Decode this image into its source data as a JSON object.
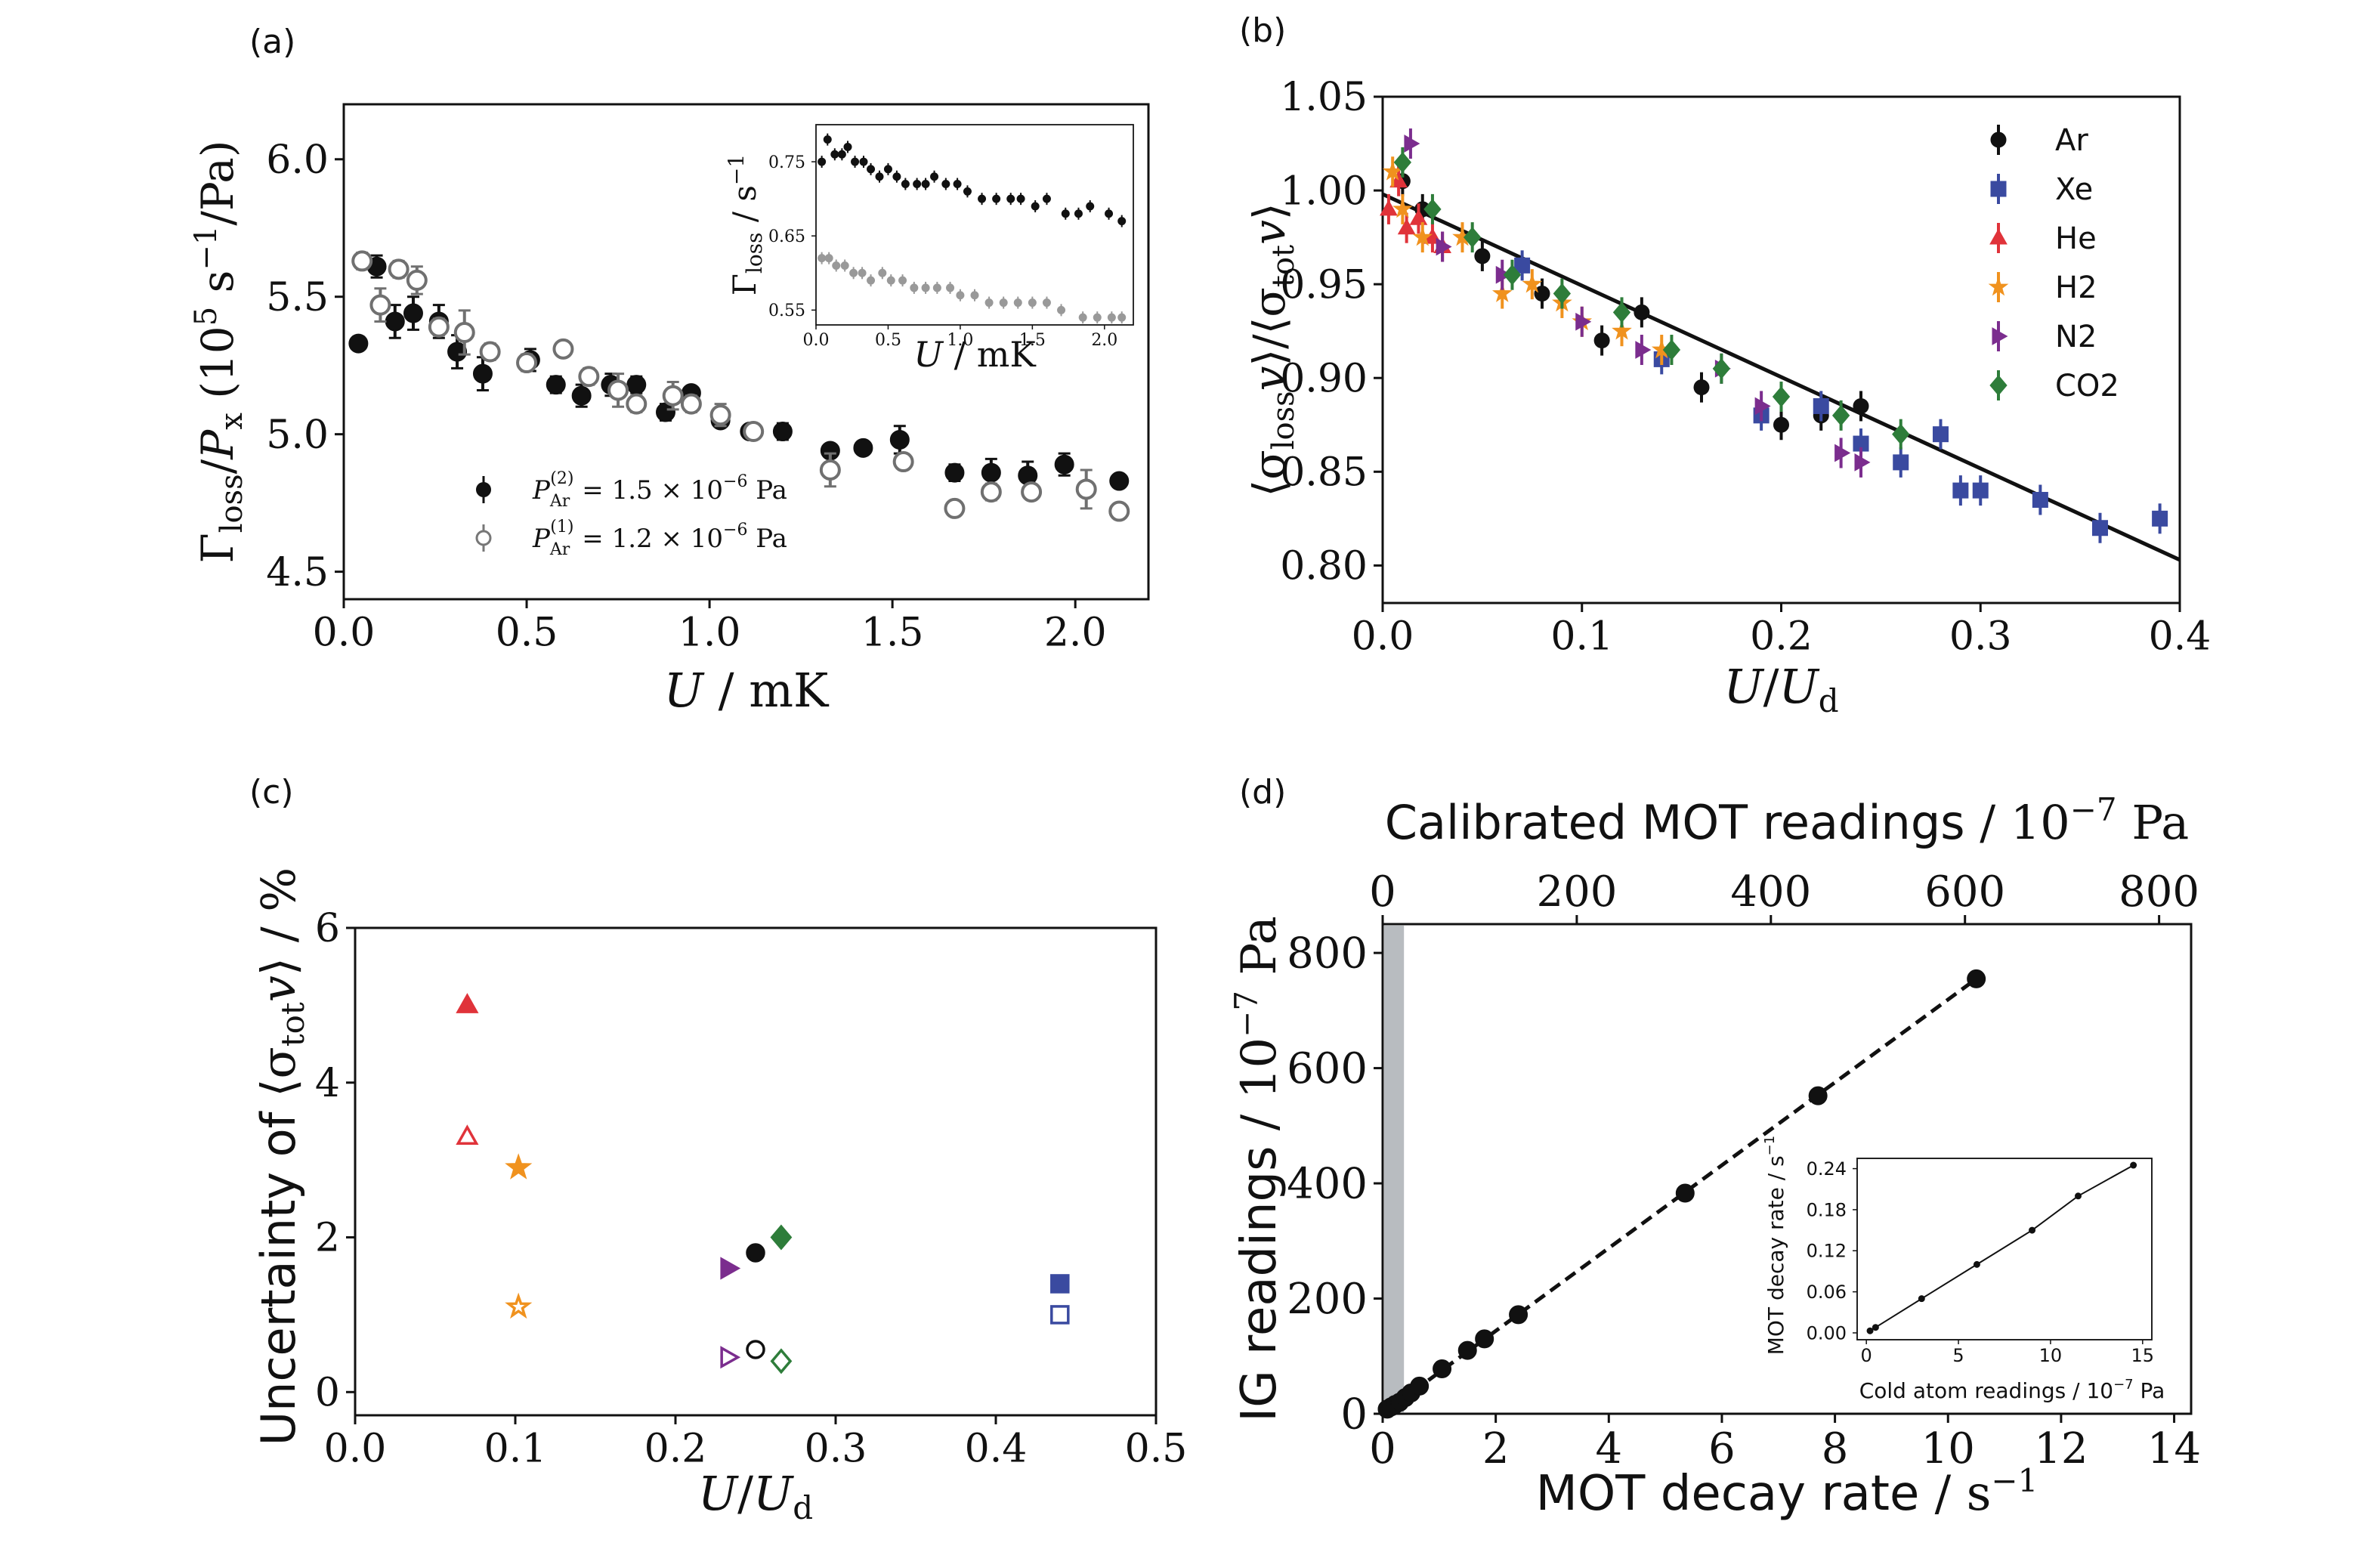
{
  "chart_data": [
    {
      "panel": "(a)",
      "type": "scatter",
      "xlabel": "U / mK",
      "ylabel": "Γloss/Px (10^5 s^-1/Pa)",
      "xlim": [
        0,
        2.2
      ],
      "ylim": [
        4.4,
        6.2
      ],
      "xticks": [
        "0.0",
        "0.5",
        "1.0",
        "1.5",
        "2.0"
      ],
      "yticks": [
        "4.5",
        "5.0",
        "5.5",
        "6.0"
      ],
      "legend_position": "bottom-left",
      "series": [
        {
          "name": "P_Ar^(2) = 1.5 × 10^-6 Pa",
          "marker": "filled-circle",
          "color": "#111111",
          "x": [
            0.04,
            0.09,
            0.14,
            0.19,
            0.26,
            0.31,
            0.38,
            0.51,
            0.58,
            0.65,
            0.73,
            0.8,
            0.88,
            0.95,
            1.03,
            1.11,
            1.2,
            1.33,
            1.42,
            1.52,
            1.67,
            1.77,
            1.87,
            1.97,
            2.12
          ],
          "y": [
            5.33,
            5.61,
            5.41,
            5.44,
            5.41,
            5.3,
            5.22,
            5.27,
            5.18,
            5.14,
            5.18,
            5.18,
            5.08,
            5.15,
            5.05,
            5.01,
            5.01,
            4.94,
            4.95,
            4.98,
            4.86,
            4.86,
            4.85,
            4.89,
            4.83
          ],
          "err": [
            0.02,
            0.04,
            0.06,
            0.06,
            0.06,
            0.06,
            0.06,
            0.04,
            0.03,
            0.04,
            0.04,
            0.03,
            0.03,
            0.02,
            0.02,
            0.02,
            0.03,
            0.02,
            0.02,
            0.05,
            0.03,
            0.05,
            0.05,
            0.04,
            0.02
          ]
        },
        {
          "name": "P_Ar^(1) = 1.2 × 10^-6 Pa",
          "marker": "open-circle",
          "color": "#707070",
          "x": [
            0.05,
            0.1,
            0.15,
            0.2,
            0.26,
            0.33,
            0.4,
            0.5,
            0.6,
            0.67,
            0.75,
            0.8,
            0.9,
            0.95,
            1.03,
            1.12,
            1.33,
            1.53,
            1.67,
            1.77,
            1.88,
            2.03,
            2.12
          ],
          "y": [
            5.63,
            5.47,
            5.6,
            5.56,
            5.39,
            5.37,
            5.3,
            5.26,
            5.31,
            5.21,
            5.16,
            5.11,
            5.14,
            5.11,
            5.07,
            5.01,
            4.87,
            4.9,
            4.73,
            4.79,
            4.79,
            4.8,
            4.72
          ],
          "err": [
            0.03,
            0.06,
            0.03,
            0.05,
            0.03,
            0.08,
            0.03,
            0.03,
            0.02,
            0.03,
            0.06,
            0.03,
            0.05,
            0.03,
            0.04,
            0.02,
            0.06,
            0.02,
            0.02,
            0.03,
            0.02,
            0.07,
            0.02
          ]
        }
      ],
      "inset": {
        "type": "scatter",
        "xlabel": "U / mK",
        "ylabel": "Γloss / s^-1",
        "xlim": [
          0,
          2.2
        ],
        "ylim": [
          0.53,
          0.8
        ],
        "xticks": [
          "0.0",
          "0.5",
          "1.0",
          "1.5",
          "2.0"
        ],
        "yticks": [
          "0.55",
          "0.65",
          "0.75"
        ],
        "series": [
          {
            "marker": "filled-circle",
            "color": "#111111",
            "x": [
              0.04,
              0.08,
              0.13,
              0.18,
              0.22,
              0.27,
              0.33,
              0.38,
              0.44,
              0.5,
              0.56,
              0.62,
              0.7,
              0.76,
              0.82,
              0.9,
              0.98,
              1.05,
              1.15,
              1.25,
              1.35,
              1.42,
              1.52,
              1.6,
              1.73,
              1.82,
              1.9,
              2.03,
              2.12
            ],
            "y": [
              0.75,
              0.78,
              0.76,
              0.76,
              0.77,
              0.75,
              0.75,
              0.74,
              0.73,
              0.74,
              0.73,
              0.72,
              0.72,
              0.72,
              0.73,
              0.72,
              0.72,
              0.71,
              0.7,
              0.7,
              0.7,
              0.7,
              0.69,
              0.7,
              0.68,
              0.68,
              0.69,
              0.68,
              0.67
            ]
          },
          {
            "marker": "filled-circle",
            "color": "#999999",
            "x": [
              0.04,
              0.09,
              0.14,
              0.2,
              0.26,
              0.32,
              0.38,
              0.46,
              0.52,
              0.6,
              0.68,
              0.76,
              0.84,
              0.93,
              1.0,
              1.1,
              1.2,
              1.3,
              1.4,
              1.5,
              1.6,
              1.7,
              1.85,
              1.95,
              2.05,
              2.12
            ],
            "y": [
              0.62,
              0.62,
              0.61,
              0.61,
              0.6,
              0.6,
              0.59,
              0.6,
              0.59,
              0.59,
              0.58,
              0.58,
              0.58,
              0.58,
              0.57,
              0.57,
              0.56,
              0.56,
              0.56,
              0.56,
              0.56,
              0.55,
              0.54,
              0.54,
              0.54,
              0.54
            ]
          }
        ]
      }
    },
    {
      "panel": "(b)",
      "type": "scatter",
      "xlabel": "U/Ud",
      "ylabel": "⟨σloss v⟩/⟨σtot v⟩",
      "xlim": [
        0,
        0.4
      ],
      "ylim": [
        0.78,
        1.05
      ],
      "xticks": [
        "0.0",
        "0.1",
        "0.2",
        "0.3",
        "0.4"
      ],
      "yticks": [
        "0.80",
        "0.85",
        "0.90",
        "0.95",
        "1.00",
        "1.05"
      ],
      "legend_position": "top-right",
      "fit_line": {
        "x": [
          0.0,
          0.4
        ],
        "y": [
          0.998,
          0.803
        ]
      },
      "series": [
        {
          "name": "Ar",
          "marker": "circle",
          "color": "#111111",
          "x": [
            0.01,
            0.02,
            0.05,
            0.08,
            0.11,
            0.13,
            0.16,
            0.2,
            0.22,
            0.24
          ],
          "y": [
            1.005,
            0.99,
            0.965,
            0.945,
            0.92,
            0.935,
            0.895,
            0.875,
            0.88,
            0.885
          ]
        },
        {
          "name": "Xe",
          "marker": "square",
          "color": "#3a4aa0",
          "x": [
            0.07,
            0.14,
            0.19,
            0.22,
            0.24,
            0.26,
            0.28,
            0.29,
            0.3,
            0.33,
            0.36,
            0.39
          ],
          "y": [
            0.96,
            0.91,
            0.88,
            0.885,
            0.865,
            0.855,
            0.87,
            0.84,
            0.84,
            0.835,
            0.82,
            0.825
          ]
        },
        {
          "name": "He",
          "marker": "triangle",
          "color": "#e0333a",
          "x": [
            0.003,
            0.008,
            0.012,
            0.018,
            0.025,
            0.03
          ],
          "y": [
            0.99,
            1.005,
            0.98,
            0.985,
            0.975,
            0.97
          ]
        },
        {
          "name": "H2",
          "marker": "star",
          "color": "#f0921e",
          "x": [
            0.005,
            0.01,
            0.02,
            0.04,
            0.06,
            0.075,
            0.09,
            0.1,
            0.12,
            0.14
          ],
          "y": [
            1.01,
            0.99,
            0.975,
            0.975,
            0.945,
            0.95,
            0.94,
            0.93,
            0.925,
            0.915
          ]
        },
        {
          "name": "N2",
          "marker": "tri-right",
          "color": "#7b2d8e",
          "x": [
            0.014,
            0.03,
            0.06,
            0.1,
            0.13,
            0.17,
            0.19,
            0.23,
            0.24
          ],
          "y": [
            1.025,
            0.97,
            0.955,
            0.93,
            0.915,
            0.905,
            0.885,
            0.86,
            0.855
          ]
        },
        {
          "name": "CO2",
          "marker": "diamond",
          "color": "#2e7d3a",
          "x": [
            0.01,
            0.025,
            0.045,
            0.065,
            0.09,
            0.12,
            0.145,
            0.17,
            0.2,
            0.23,
            0.26
          ],
          "y": [
            1.015,
            0.99,
            0.975,
            0.955,
            0.945,
            0.935,
            0.915,
            0.905,
            0.89,
            0.88,
            0.87
          ]
        }
      ]
    },
    {
      "panel": "(c)",
      "type": "scatter",
      "xlabel": "U/Ud",
      "ylabel": "Uncertainty of ⟨σtot v⟩ / %",
      "xlim": [
        0,
        0.5
      ],
      "ylim": [
        -0.3,
        6
      ],
      "xticks": [
        "0.0",
        "0.1",
        "0.2",
        "0.3",
        "0.4",
        "0.5"
      ],
      "yticks": [
        "0",
        "2",
        "4",
        "6"
      ],
      "points": [
        {
          "x": 0.07,
          "y": 5.0,
          "marker": "triangle",
          "filled": true,
          "color": "#e0333a"
        },
        {
          "x": 0.07,
          "y": 3.3,
          "marker": "triangle",
          "filled": false,
          "color": "#e0333a"
        },
        {
          "x": 0.102,
          "y": 2.9,
          "marker": "star",
          "filled": true,
          "color": "#f0921e"
        },
        {
          "x": 0.102,
          "y": 1.1,
          "marker": "star",
          "filled": false,
          "color": "#f0921e"
        },
        {
          "x": 0.233,
          "y": 1.6,
          "marker": "tri-right",
          "filled": true,
          "color": "#7b2d8e"
        },
        {
          "x": 0.233,
          "y": 0.45,
          "marker": "tri-right",
          "filled": false,
          "color": "#7b2d8e"
        },
        {
          "x": 0.25,
          "y": 1.8,
          "marker": "circle",
          "filled": true,
          "color": "#111111"
        },
        {
          "x": 0.25,
          "y": 0.55,
          "marker": "circle",
          "filled": false,
          "color": "#111111"
        },
        {
          "x": 0.266,
          "y": 2.0,
          "marker": "diamond",
          "filled": true,
          "color": "#2e7d3a"
        },
        {
          "x": 0.266,
          "y": 0.4,
          "marker": "diamond",
          "filled": false,
          "color": "#2e7d3a"
        },
        {
          "x": 0.44,
          "y": 1.4,
          "marker": "square",
          "filled": true,
          "color": "#3a4aa0"
        },
        {
          "x": 0.44,
          "y": 1.0,
          "marker": "square",
          "filled": false,
          "color": "#3a4aa0"
        }
      ]
    },
    {
      "panel": "(d)",
      "type": "scatter",
      "xlabel": "MOT decay rate / s^-1",
      "ylabel": "IG readings / 10^-7 Pa",
      "x2label": "Calibrated MOT readings / 10^-7 Pa",
      "xlim": [
        0,
        14.3
      ],
      "ylim": [
        0,
        850
      ],
      "x2lim": [
        0,
        833
      ],
      "xticks": [
        "0",
        "2",
        "4",
        "6",
        "8",
        "10",
        "12",
        "14"
      ],
      "yticks": [
        "0",
        "200",
        "400",
        "600",
        "800"
      ],
      "x2ticks": [
        "0",
        "200",
        "400",
        "600",
        "800"
      ],
      "shaded_x_range": [
        0,
        0.35
      ],
      "fit_line": {
        "x": [
          0.0,
          10.5
        ],
        "y": [
          0,
          755
        ]
      },
      "series": [
        {
          "marker": "filled-circle",
          "color": "#111111",
          "x": [
            0.08,
            0.15,
            0.22,
            0.3,
            0.4,
            0.5,
            0.65,
            1.05,
            1.5,
            1.8,
            2.4,
            5.35,
            7.7,
            10.5
          ],
          "y": [
            8,
            12,
            16,
            20,
            28,
            36,
            48,
            78,
            110,
            130,
            172,
            383,
            552,
            755
          ]
        }
      ],
      "inset": {
        "xlabel": "Cold atom readings / 10^-7 Pa",
        "ylabel": "MOT decay rate / s^-1",
        "xlim": [
          -0.5,
          15.5
        ],
        "ylim": [
          -0.01,
          0.255
        ],
        "xticks": [
          "0",
          "5",
          "10",
          "15"
        ],
        "yticks": [
          "0.00",
          "0.06",
          "0.12",
          "0.18",
          "0.24"
        ],
        "x": [
          0.2,
          0.5,
          3,
          6,
          9,
          11.5,
          14.5
        ],
        "y": [
          0.003,
          0.008,
          0.05,
          0.1,
          0.15,
          0.2,
          0.245
        ]
      }
    }
  ]
}
